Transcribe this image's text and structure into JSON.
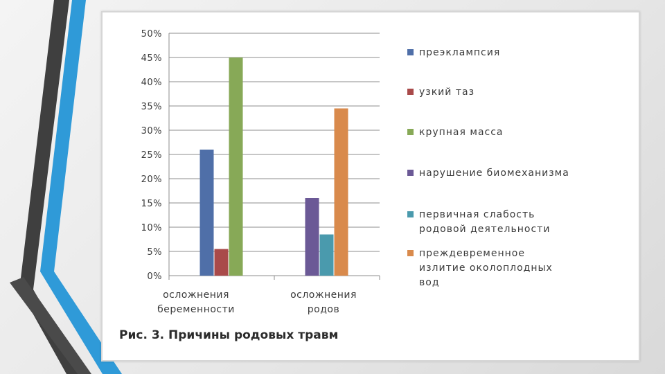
{
  "chart_data": {
    "type": "bar",
    "categories": [
      [
        "осложнения",
        "беременности"
      ],
      [
        "осложнения",
        "родов"
      ]
    ],
    "series": [
      {
        "name": "преэклампсия",
        "values": [
          26,
          null
        ],
        "color": "#4f6fa8"
      },
      {
        "name": "узкий таз",
        "values": [
          5.5,
          null
        ],
        "color": "#a94a4a"
      },
      {
        "name": "крупная масса",
        "values": [
          45,
          null
        ],
        "color": "#87a957"
      },
      {
        "name": "нарушение биомеханизма",
        "values": [
          null,
          16
        ],
        "color": "#6b5996"
      },
      {
        "name": "первичная слабость родовой деятельности",
        "values": [
          null,
          8.5
        ],
        "color": "#4a9aad"
      },
      {
        "name": "преждевременное излитие околоплодных вод",
        "values": [
          null,
          34.5
        ],
        "color": "#d98a4c"
      }
    ],
    "yticks": [
      "0%",
      "5%",
      "10%",
      "15%",
      "20%",
      "25%",
      "30%",
      "35%",
      "40%",
      "45%",
      "50%"
    ],
    "ylim": [
      0,
      50
    ],
    "grid": true,
    "legend_position": "right",
    "caption": "Рис. 3. Причины родовых травм"
  },
  "legend_lines": [
    [
      "преэклампсия"
    ],
    [
      "узкий таз"
    ],
    [
      "крупная масса"
    ],
    [
      "нарушение биомеханизма"
    ],
    [
      "первичная слабость",
      "родовой деятельности"
    ],
    [
      "преждевременное",
      "излитие околоплодных",
      "вод"
    ]
  ],
  "colors": {
    "axis": "#8c8c8c",
    "grid": "#8c8c8c",
    "deco_dark": "#3f3f3f",
    "deco_blue": "#2f9ad8"
  }
}
